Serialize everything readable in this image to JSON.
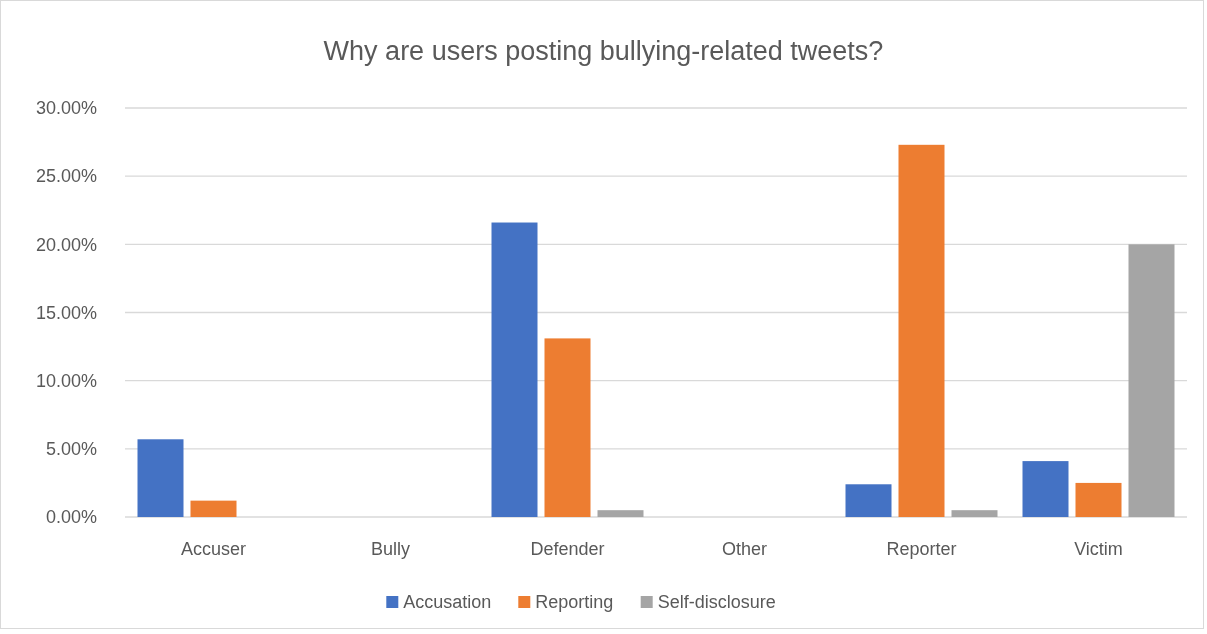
{
  "chart_data": {
    "type": "bar",
    "title": "Why are users posting bullying-related tweets?",
    "categories": [
      "Accuser",
      "Bully",
      "Defender",
      "Other",
      "Reporter",
      "Victim"
    ],
    "series": [
      {
        "name": "Accusation",
        "color": "#4472c4",
        "values": [
          5.7,
          0,
          21.6,
          0,
          2.4,
          4.1
        ]
      },
      {
        "name": "Reporting",
        "color": "#ed7d31",
        "values": [
          1.2,
          0,
          13.1,
          0,
          27.3,
          2.5
        ]
      },
      {
        "name": "Self-disclosure",
        "color": "#a5a5a5",
        "values": [
          0,
          0,
          0.5,
          0,
          0.5,
          20.0
        ]
      }
    ],
    "ylim": [
      0,
      30
    ],
    "yticks": [
      {
        "value": 0,
        "label": "0.00%"
      },
      {
        "value": 5,
        "label": "5.00%"
      },
      {
        "value": 10,
        "label": "10.00%"
      },
      {
        "value": 15,
        "label": "15.00%"
      },
      {
        "value": 20,
        "label": "20.00%"
      },
      {
        "value": 25,
        "label": "25.00%"
      },
      {
        "value": 30,
        "label": "30.00%"
      }
    ],
    "grid": "y",
    "legend": "bottom"
  }
}
